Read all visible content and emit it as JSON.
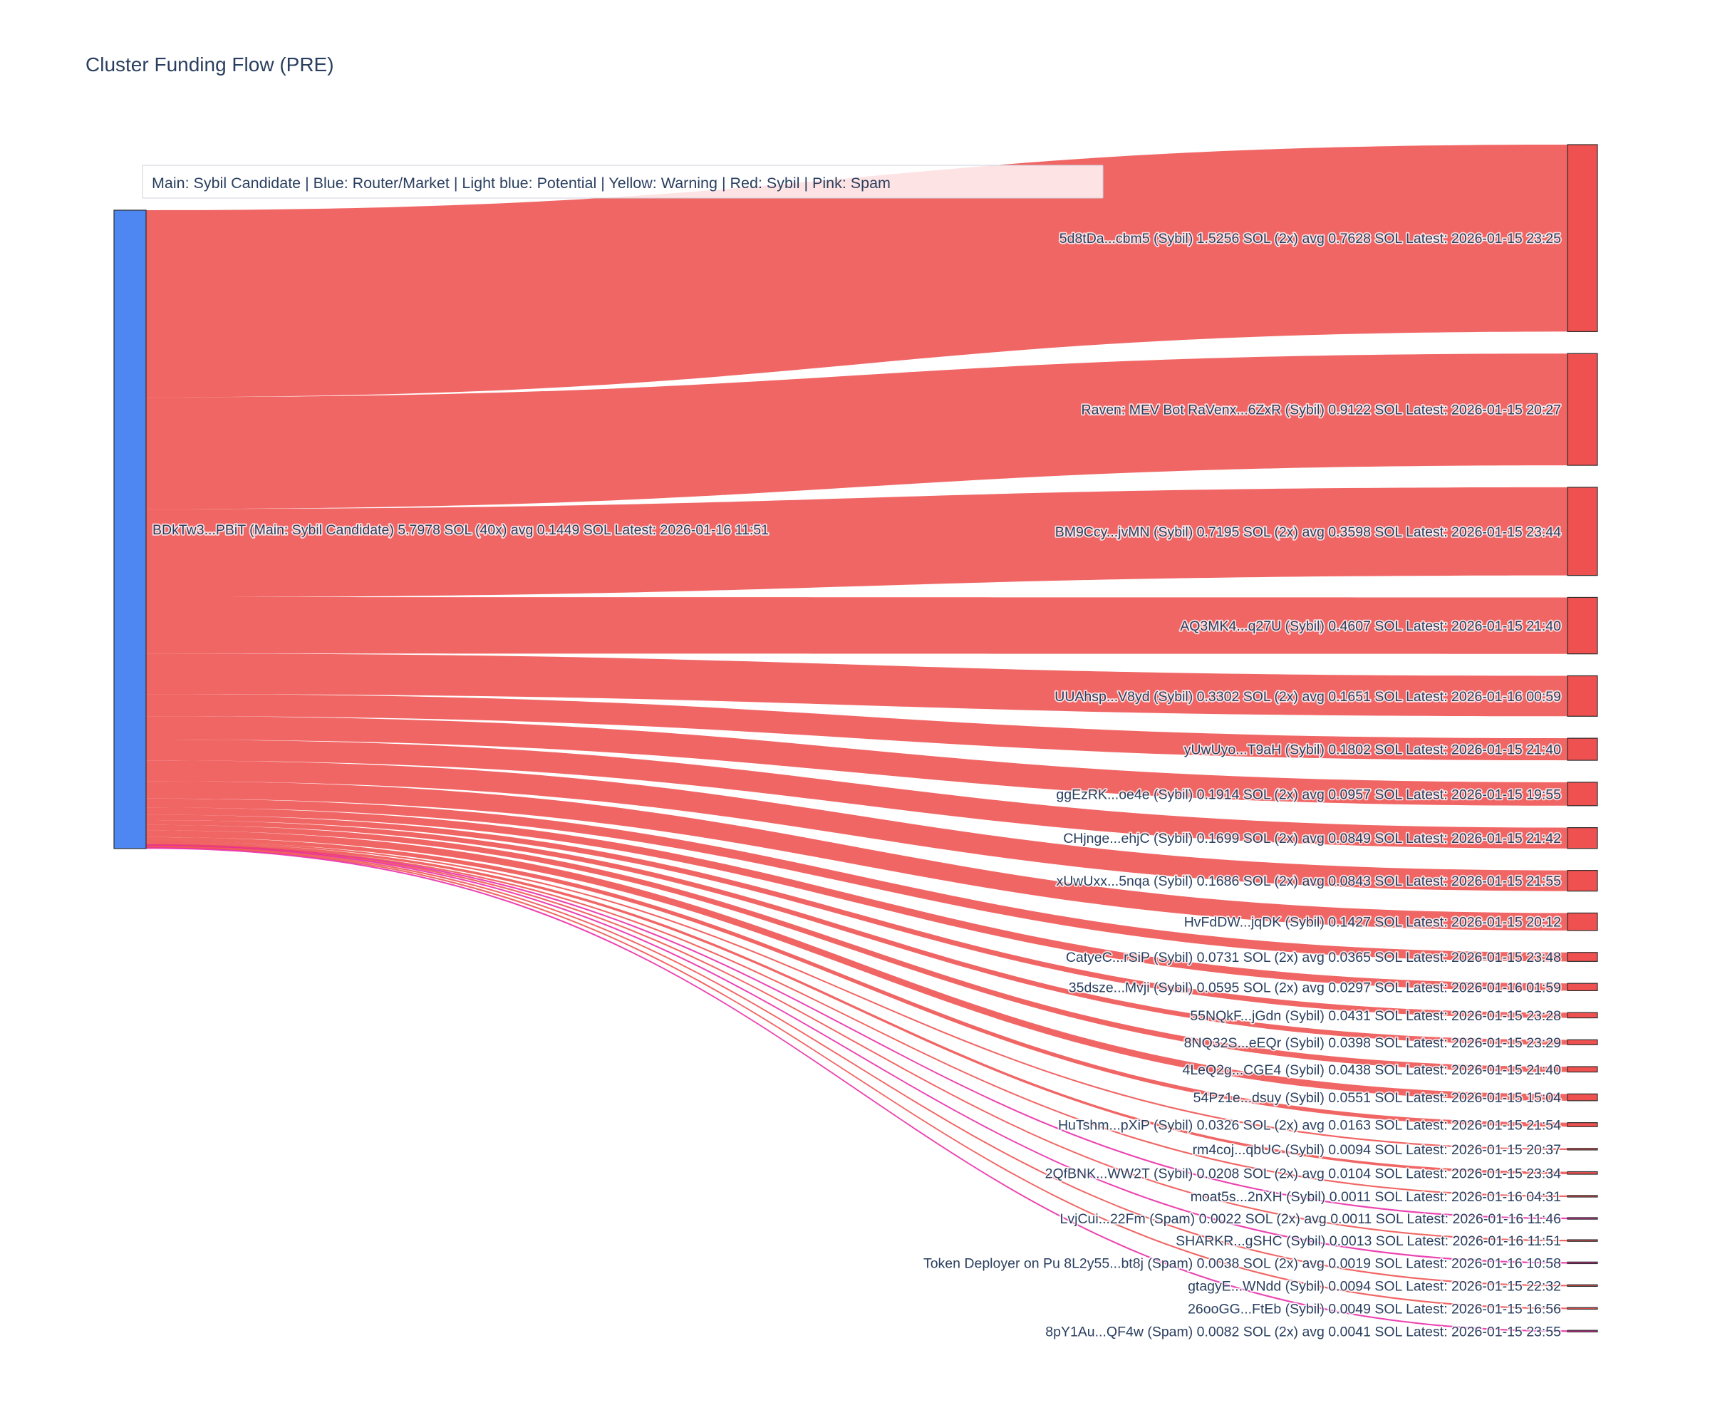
{
  "title": "Cluster Funding Flow (PRE)",
  "legend": {
    "text": "Main: Sybil Candidate  |  Blue: Router/Market | Light blue: Potential | Yellow: Warning | Red: Sybil | Pink: Spam"
  },
  "colors": {
    "main_node": "#4e87f2",
    "sybil": "#ee5150",
    "spam": "#e82aa6",
    "node_border": "#2d2d2d",
    "text": "#2a3f5f"
  },
  "chart_data": {
    "type": "sankey",
    "title": "Cluster Funding Flow (PRE)",
    "source_node": {
      "label": "BDkTw3...PBiT (Main: Sybil Candidate) 5.7978 SOL (40x) avg 0.1449 SOL Latest: 2026-01-16 11:51",
      "address_short": "BDkTw3...PBiT",
      "category": "main",
      "total_sol": 5.7978,
      "tx_count": 40,
      "avg_sol": 0.1449,
      "latest": "2026-01-16 11:51"
    },
    "links": [
      {
        "label": "5d8tDa...cbm5 (Sybil) 1.5256 SOL (2x) avg 0.7628 SOL Latest: 2026-01-15 23:25",
        "value_sol": 1.5256,
        "category": "sybil"
      },
      {
        "label": "Raven: MEV Bot RaVenx...6ZxR (Sybil) 0.9122 SOL Latest: 2026-01-15 20:27",
        "value_sol": 0.9122,
        "category": "sybil"
      },
      {
        "label": "BM9Ccy...jvMN (Sybil) 0.7195 SOL (2x) avg 0.3598 SOL Latest: 2026-01-15 23:44",
        "value_sol": 0.7195,
        "category": "sybil"
      },
      {
        "label": "AQ3MK4...q27U (Sybil) 0.4607 SOL Latest: 2026-01-15 21:40",
        "value_sol": 0.4607,
        "category": "sybil"
      },
      {
        "label": "UUAhsp...V8yd (Sybil) 0.3302 SOL (2x) avg 0.1651 SOL Latest: 2026-01-16 00:59",
        "value_sol": 0.3302,
        "category": "sybil"
      },
      {
        "label": "yUwUyo...T9aH (Sybil) 0.1802 SOL Latest: 2026-01-15 21:40",
        "value_sol": 0.1802,
        "category": "sybil"
      },
      {
        "label": "ggEzRK...oe4e (Sybil) 0.1914 SOL (2x) avg 0.0957 SOL Latest: 2026-01-15 19:55",
        "value_sol": 0.1914,
        "category": "sybil"
      },
      {
        "label": "CHjnge...ehjC (Sybil) 0.1699 SOL (2x) avg 0.0849 SOL Latest: 2026-01-15 21:42",
        "value_sol": 0.1699,
        "category": "sybil"
      },
      {
        "label": "xUwUxx...5nqa (Sybil) 0.1686 SOL (2x) avg 0.0843 SOL Latest: 2026-01-15 21:55",
        "value_sol": 0.1686,
        "category": "sybil"
      },
      {
        "label": "HvFdDW...jqDK (Sybil) 0.1427 SOL Latest: 2026-01-15 20:12",
        "value_sol": 0.1427,
        "category": "sybil"
      },
      {
        "label": "CatyeC...rSiP (Sybil) 0.0731 SOL (2x) avg 0.0365 SOL Latest: 2026-01-15 23:48",
        "value_sol": 0.0731,
        "category": "sybil"
      },
      {
        "label": "35dsze...Mvji (Sybil) 0.0595 SOL (2x) avg 0.0297 SOL Latest: 2026-01-16 01:59",
        "value_sol": 0.0595,
        "category": "sybil"
      },
      {
        "label": "55NQkF...jGdn (Sybil) 0.0431 SOL Latest: 2026-01-15 23:28",
        "value_sol": 0.0431,
        "category": "sybil"
      },
      {
        "label": "8NQ32S...eEQr (Sybil) 0.0398 SOL Latest: 2026-01-15 23:29",
        "value_sol": 0.0398,
        "category": "sybil"
      },
      {
        "label": "4LeQ2g...CGE4 (Sybil) 0.0438 SOL Latest: 2026-01-15 21:40",
        "value_sol": 0.0438,
        "category": "sybil"
      },
      {
        "label": "54Pz1e...dsuy (Sybil) 0.0551 SOL Latest: 2026-01-15 15:04",
        "value_sol": 0.0551,
        "category": "sybil"
      },
      {
        "label": "HuTshm...pXiP (Sybil) 0.0326 SOL (2x) avg 0.0163 SOL Latest: 2026-01-15 21:54",
        "value_sol": 0.0326,
        "category": "sybil"
      },
      {
        "label": "rm4coj...qbUC (Sybil) 0.0094 SOL Latest: 2026-01-15 20:37",
        "value_sol": 0.0094,
        "category": "sybil"
      },
      {
        "label": "2QfBNK...WW2T (Sybil) 0.0208 SOL (2x) avg 0.0104 SOL Latest: 2026-01-15 23:34",
        "value_sol": 0.0208,
        "category": "sybil"
      },
      {
        "label": "moat5s...2nXH (Sybil) 0.0011 SOL Latest: 2026-01-16 04:31",
        "value_sol": 0.0011,
        "category": "sybil"
      },
      {
        "label": "LvjCui...22Fm (Spam) 0.0022 SOL (2x) avg 0.0011 SOL Latest: 2026-01-16 11:46",
        "value_sol": 0.0022,
        "category": "spam"
      },
      {
        "label": "SHARKR...gSHC (Sybil) 0.0013 SOL Latest: 2026-01-16 11:51",
        "value_sol": 0.0013,
        "category": "sybil"
      },
      {
        "label": "Token Deployer on Pu 8L2y55...bt8j (Spam) 0.0038 SOL (2x) avg 0.0019 SOL Latest: 2026-01-16 10:58",
        "value_sol": 0.0038,
        "category": "spam"
      },
      {
        "label": "gtagyE...WNdd (Sybil) 0.0094 SOL Latest: 2026-01-15 22:32",
        "value_sol": 0.0094,
        "category": "sybil"
      },
      {
        "label": "26ooGG...FtEb (Sybil) 0.0049 SOL Latest: 2026-01-15 16:56",
        "value_sol": 0.0049,
        "category": "sybil"
      },
      {
        "label": "8pY1Au...QF4w (Spam) 0.0082 SOL (2x) avg 0.0041 SOL Latest: 2026-01-15 23:55",
        "value_sol": 0.0082,
        "category": "spam"
      }
    ],
    "layout_hints": {
      "orientation": "horizontal",
      "source_on_left": true,
      "legend_position": "top-left overlay",
      "background": "#ffffff"
    }
  }
}
